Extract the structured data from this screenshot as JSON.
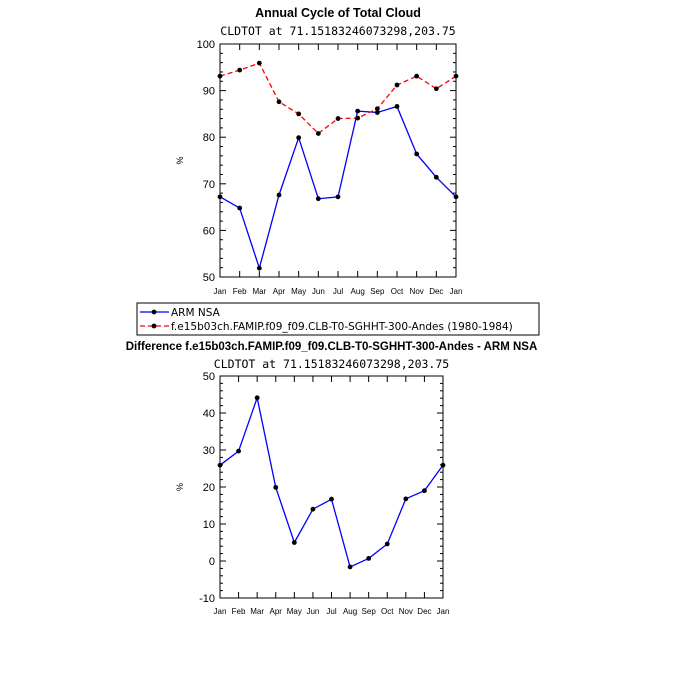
{
  "chart_data": [
    {
      "type": "line",
      "title": "Annual Cycle of Total Cloud",
      "subtitle": "CLDTOT at 71.15183246073298,203.75",
      "xlabel": "",
      "ylabel": "%",
      "categories": [
        "Jan",
        "Feb",
        "Mar",
        "Apr",
        "May",
        "Jun",
        "Jul",
        "Aug",
        "Sep",
        "Oct",
        "Nov",
        "Dec",
        "Jan"
      ],
      "ylim": [
        50,
        100
      ],
      "yticks": [
        50,
        60,
        70,
        80,
        90,
        100
      ],
      "series": [
        {
          "name": "ARM NSA",
          "color": "#0000ff",
          "dash": "solid",
          "values": [
            67.2,
            64.8,
            51.9,
            67.6,
            79.9,
            66.8,
            67.2,
            85.6,
            85.3,
            86.6,
            76.4,
            71.4,
            67.2
          ]
        },
        {
          "name": "f.e15b03ch.FAMIP.f09_f09.CLB-T0-SGHHT-300-Andes (1980-1984)",
          "color": "#ff0000",
          "dash": "dashed",
          "values": [
            93.1,
            94.4,
            95.9,
            87.6,
            85.0,
            80.8,
            84.0,
            84.1,
            86.1,
            91.2,
            93.1,
            90.4,
            93.1
          ]
        }
      ],
      "legend": {
        "position": "below",
        "entries": [
          "ARM NSA",
          "f.e15b03ch.FAMIP.f09_f09.CLB-T0-SGHHT-300-Andes (1980-1984)"
        ]
      }
    },
    {
      "type": "line",
      "title": "Difference f.e15b03ch.FAMIP.f09_f09.CLB-T0-SGHHT-300-Andes - ARM NSA",
      "subtitle": "CLDTOT at 71.15183246073298,203.75",
      "xlabel": "",
      "ylabel": "%",
      "categories": [
        "Jan",
        "Feb",
        "Mar",
        "Apr",
        "May",
        "Jun",
        "Jul",
        "Aug",
        "Sep",
        "Oct",
        "Nov",
        "Dec",
        "Jan"
      ],
      "ylim": [
        -10,
        50
      ],
      "yticks": [
        -10,
        0,
        10,
        20,
        30,
        40,
        50
      ],
      "series": [
        {
          "name": "Difference",
          "color": "#0000ff",
          "dash": "solid",
          "values": [
            25.9,
            29.7,
            44.1,
            19.9,
            5.0,
            14.0,
            16.7,
            -1.6,
            0.7,
            4.6,
            16.8,
            19.0,
            25.9
          ]
        }
      ]
    }
  ]
}
